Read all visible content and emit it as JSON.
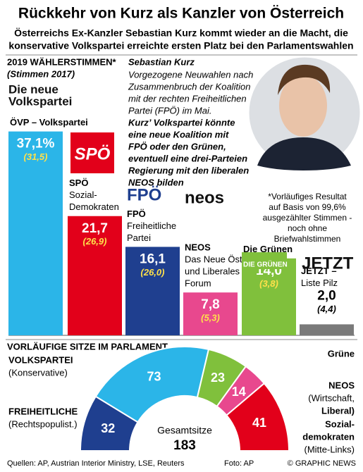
{
  "title": "Rückkehr von Kurz als Kanzler von Österreich",
  "subtitle": [
    "Österreichs Ex-Kanzler Sebastian Kurz kommt wieder an die Macht, die",
    "konservative Volkspartei erreichte ersten Platz bei den Parlamentswahlen"
  ],
  "chart_data": [
    {
      "type": "bar",
      "title": "2019 WÄHLERSTIMMEN*",
      "subtitle": "(Stimmen 2017)",
      "categories": [
        [
          "ÖVP – Volkspartei"
        ],
        [
          "SPÖ",
          "Sozial-",
          "Demokraten"
        ],
        [
          "FPÖ",
          "Freiheitliche",
          "Partei"
        ],
        [
          "NEOS",
          "Das Neue Österreich",
          "und Liberales",
          "Forum"
        ],
        [
          "Die Grünen"
        ],
        [
          "JETZT –",
          "Liste Pilz"
        ]
      ],
      "logos": [
        [
          "Die neue",
          "Volkspartei"
        ],
        [
          "SPÖ"
        ],
        [
          "FPÖ"
        ],
        [
          "neos"
        ],
        [
          "DIE GRÜNEN"
        ],
        [
          "JETZT"
        ]
      ],
      "values": [
        37.1,
        21.7,
        16.1,
        7.8,
        14.0,
        2.0
      ],
      "value_labels": [
        "37,1%",
        "21,7",
        "16,1",
        "7,8",
        "14,0",
        "2,0"
      ],
      "values_2017": [
        31.5,
        26.9,
        26.0,
        5.3,
        3.8,
        4.4
      ],
      "value_labels_2017": [
        "(31,5)",
        "(26,9)",
        "(26,0)",
        "(5,3)",
        "(3,8)",
        "(4,4)"
      ],
      "colors": [
        "#2bb5e8",
        "#e2001a",
        "#1f3f8f",
        "#e8488e",
        "#80c03c",
        "#7a7a7a"
      ],
      "footnote": [
        "*Vorläufiges Resultat",
        "auf Basis von 99,6%",
        "ausgezählter Stimmen -",
        "noch ohne",
        "Briefwahlstimmen"
      ],
      "annotation": {
        "title": "Sebastian Kurz",
        "text": [
          "Vorgezogene Neuwahlen nach",
          "Zusammenbruch der Koalition",
          "mit der rechten Freiheitlichen",
          "Partei (FPÖ) im Mai."
        ],
        "emphasis": [
          "Kurz’ Volkspartei könnte",
          "eine neue Koalition mit",
          "FPÖ oder den Grünen,",
          "eventuell eine drei-Parteien",
          "Regierung mit den liberalen",
          "NEOS bilden"
        ]
      }
    },
    {
      "type": "semi-donut",
      "title": "VORLÄUFIGE SITZE IM PARLAMENT",
      "categories": [
        [
          "FREIHEITLICHE",
          "(Rechtspopulist.)"
        ],
        [
          "VOLKSPARTEI",
          "(Konservative)"
        ],
        [
          "Grüne"
        ],
        [
          "NEOS",
          "(Wirtschaft,",
          "Liberal)"
        ],
        [
          "Sozial-",
          "demokraten",
          "(Mitte-Links)"
        ]
      ],
      "values": [
        32,
        73,
        23,
        14,
        41
      ],
      "colors": [
        "#1f3f8f",
        "#2bb5e8",
        "#80c03c",
        "#e8488e",
        "#e2001a"
      ],
      "total_label": "Gesamtsitze",
      "total": 183
    }
  ],
  "footer": {
    "sources": "Quellen: AP, Austrian Interior Ministry, LSE, Reuters",
    "photo": "Foto: AP",
    "copyright": "© GRAPHIC NEWS"
  }
}
